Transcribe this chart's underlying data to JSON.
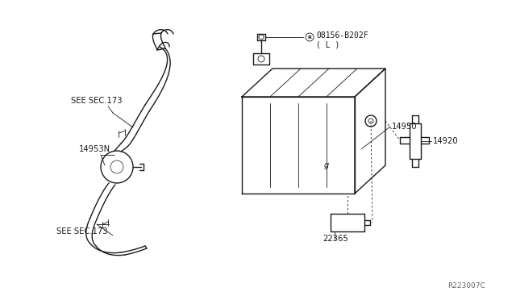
{
  "bg_color": "#ffffff",
  "line_color": "#1a1a1a",
  "line_width": 1.0,
  "thin_line": 0.6,
  "text_color": "#1a1a1a",
  "diagram_id": "R223007C",
  "labels": {
    "see_sec_173_top": "SEE SEC.173",
    "see_sec_173_bot": "SEE SEC.173",
    "part_14953N": "14953N",
    "part_14950": "14950",
    "part_14920": "14920",
    "part_22365": "22365",
    "part_screw": "08156-B202F",
    "part_screw_l": "( L )"
  }
}
